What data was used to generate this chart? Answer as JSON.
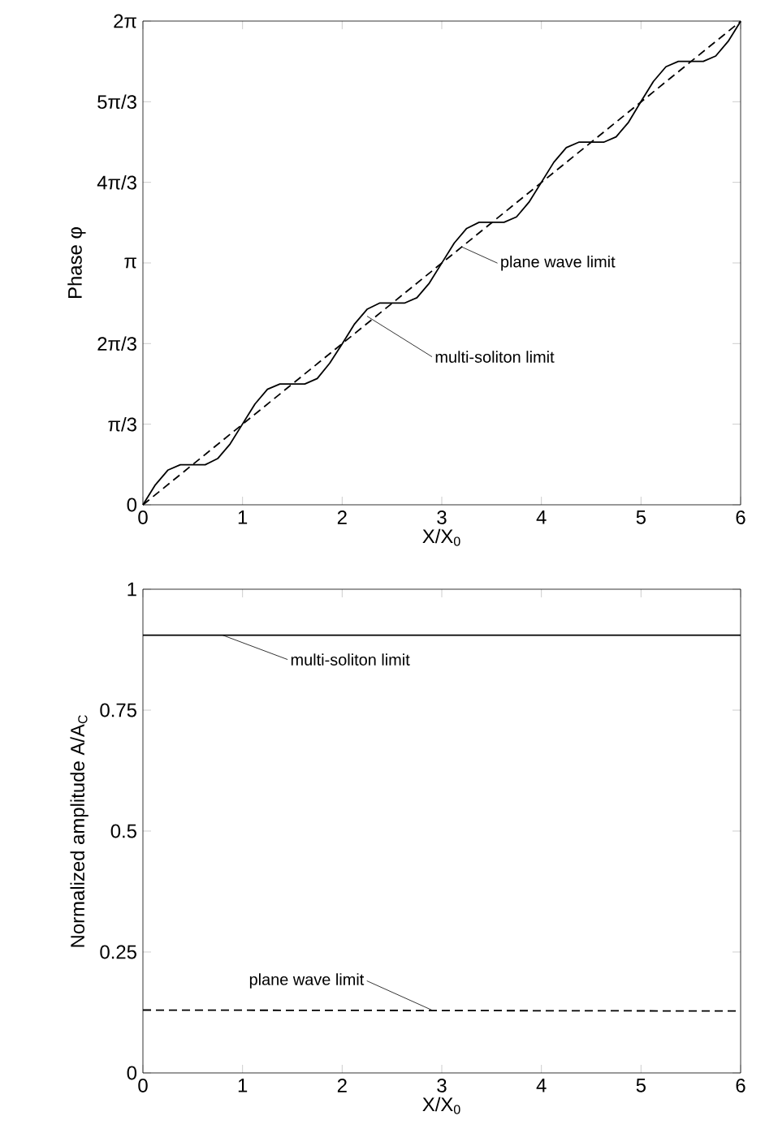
{
  "chart_data": [
    {
      "type": "line",
      "xlabel": "X/X$_{0}$",
      "ylabel": "Phase φ",
      "xlim": [
        0,
        6
      ],
      "xticks": [
        0,
        1,
        2,
        3,
        4,
        5,
        6
      ],
      "ylim": [
        0,
        6.2832
      ],
      "yticks": [
        0,
        {
          "value": 1.0472,
          "label": "π/3"
        },
        {
          "value": 2.0944,
          "label": "2π/3"
        },
        {
          "value": 3.1416,
          "label": "π"
        },
        {
          "value": 4.1888,
          "label": "4π/3"
        },
        {
          "value": 5.236,
          "label": "5π/3"
        },
        {
          "value": 6.2832,
          "label": "2π"
        }
      ],
      "series": [
        {
          "color": "#000000",
          "line_style": "solid",
          "x": [
            0,
            0.125,
            0.25,
            0.375,
            0.5,
            0.625,
            0.75,
            0.875,
            1,
            1.125,
            1.25,
            1.375,
            1.5,
            1.625,
            1.75,
            1.875,
            2,
            2.125,
            2.25,
            2.375,
            2.5,
            2.625,
            2.75,
            2.875,
            3,
            3.125,
            3.25,
            3.375,
            3.5,
            3.625,
            3.75,
            3.875,
            4,
            4.125,
            4.25,
            4.375,
            4.5,
            4.625,
            4.75,
            4.875,
            5,
            5.125,
            5.25,
            5.375,
            5.5,
            5.625,
            5.75,
            5.875,
            6
          ],
          "values": [
            0,
            0.26,
            0.45,
            0.52,
            0.52,
            0.52,
            0.6,
            0.79,
            1.05,
            1.31,
            1.5,
            1.57,
            1.57,
            1.57,
            1.64,
            1.84,
            2.09,
            2.35,
            2.54,
            2.62,
            2.62,
            2.62,
            2.69,
            2.88,
            3.14,
            3.4,
            3.59,
            3.67,
            3.67,
            3.67,
            3.74,
            3.93,
            4.19,
            4.45,
            4.64,
            4.71,
            4.71,
            4.71,
            4.78,
            4.97,
            5.24,
            5.5,
            5.69,
            5.76,
            5.76,
            5.76,
            5.83,
            6.02,
            6.28
          ]
        },
        {
          "color": "#000000",
          "line_style": "dashed",
          "x": [
            0,
            6
          ],
          "values": [
            0,
            6.28
          ]
        }
      ],
      "annotations": [
        {
          "text": "plane wave limit",
          "x": 3.2,
          "y": 3.35
        },
        {
          "text": "multi-soliton limit",
          "x": 2.25,
          "y": 2.45
        }
      ]
    },
    {
      "type": "line",
      "xlabel": "X/X$_{0}$",
      "ylabel": "Normalized amplitude A/A$_{C}$",
      "xlim": [
        0,
        6
      ],
      "xticks": [
        0,
        1,
        2,
        3,
        4,
        5,
        6
      ],
      "ylim": [
        0,
        1
      ],
      "yticks": [
        0,
        0.25,
        0.5,
        0.75,
        1
      ],
      "series": [
        {
          "color": "#000000",
          "line_style": "solid",
          "x": [
            0,
            6
          ],
          "values": [
            0.905,
            0.905
          ]
        },
        {
          "color": "#000000",
          "line_style": "dashed",
          "x": [
            0,
            6
          ],
          "values": [
            0.13,
            0.128
          ]
        }
      ],
      "annotations": [
        {
          "text": "multi-soliton limit",
          "x": 0.8,
          "y": 0.905
        },
        {
          "text": "plane wave limit",
          "x": 2.9,
          "y": 0.13
        }
      ]
    }
  ]
}
